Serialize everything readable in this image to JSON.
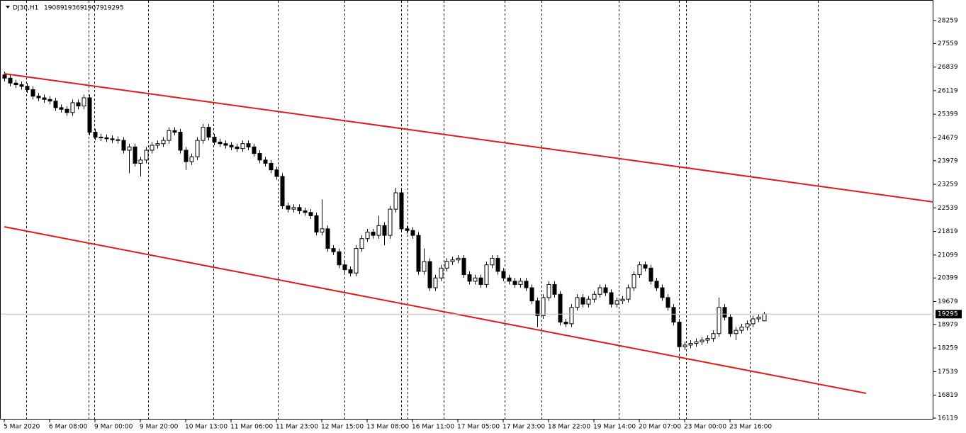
{
  "chart_data": {
    "type": "candlestick",
    "symbol": "DJ30,H1",
    "categories": [
      "5 Mar 2020",
      null,
      null,
      null,
      null,
      null,
      null,
      null,
      "6 Mar 08:00",
      null,
      null,
      null,
      null,
      null,
      null,
      null,
      "9 Mar 00:00",
      null,
      null,
      null,
      null,
      null,
      null,
      null,
      "9 Mar 20:00",
      null,
      null,
      null,
      null,
      null,
      null,
      null,
      "10 Mar 13:00",
      null,
      null,
      null,
      null,
      null,
      null,
      null,
      "11 Mar 06:00",
      null,
      null,
      null,
      null,
      null,
      null,
      null,
      "11 Mar 23:00",
      null,
      null,
      null,
      null,
      null,
      null,
      null,
      "12 Mar 15:00",
      null,
      null,
      null,
      null,
      null,
      null,
      null,
      "13 Mar 08:00",
      null,
      null,
      null,
      null,
      null,
      null,
      null,
      "16 Mar 11:00",
      null,
      null,
      null,
      null,
      null,
      null,
      null,
      "17 Mar 05:00",
      null,
      null,
      null,
      null,
      null,
      null,
      null,
      "17 Mar 23:00",
      null,
      null,
      null,
      null,
      null,
      null,
      null,
      "18 Mar 22:00",
      null,
      null,
      null,
      null,
      null,
      null,
      null,
      "19 Mar 14:00",
      null,
      null,
      null,
      null,
      null,
      null,
      null,
      "20 Mar 07:00",
      null,
      null,
      null,
      null,
      null,
      null,
      null,
      "23 Mar 00:00",
      null,
      null,
      null,
      null,
      null,
      null,
      null,
      "23 Mar 16:00",
      null,
      null,
      null,
      null,
      null,
      null
    ],
    "open": [
      26600,
      26500,
      26350,
      26300,
      26250,
      26150,
      25950,
      25900,
      25850,
      25800,
      25600,
      25550,
      25450,
      25750,
      25650,
      25900,
      24850,
      24700,
      24680,
      24650,
      24620,
      24600,
      24300,
      24400,
      23900,
      24000,
      24300,
      24450,
      24500,
      24600,
      24900,
      24850,
      24300,
      23950,
      24100,
      24600,
      25000,
      24700,
      24550,
      24500,
      24450,
      24400,
      24350,
      24500,
      24400,
      24200,
      24000,
      23900,
      23700,
      23500,
      22600,
      22500,
      22550,
      22450,
      22400,
      22300,
      21800,
      21900,
      21300,
      21200,
      20800,
      20650,
      20550,
      21300,
      21600,
      21800,
      21700,
      22000,
      21700,
      22500,
      23000,
      21900,
      21850,
      21700,
      20600,
      20900,
      20100,
      20400,
      20700,
      20900,
      20950,
      21000,
      20500,
      20300,
      20400,
      20200,
      20800,
      21000,
      20600,
      20400,
      20300,
      20200,
      20300,
      20100,
      19700,
      19250,
      19800,
      20200,
      19900,
      19050,
      19000,
      19500,
      19800,
      19600,
      19750,
      19900,
      20100,
      19950,
      19600,
      19700,
      19750,
      20100,
      20500,
      20800,
      20700,
      20300,
      20100,
      19800,
      19500,
      19050,
      18300,
      18350,
      18400,
      18450,
      18500,
      18550,
      18700,
      19500,
      19200,
      18700,
      18800,
      18900,
      19000,
      19150,
      19089
    ],
    "high": [
      26700,
      26600,
      26450,
      26400,
      26350,
      26250,
      26050,
      26000,
      25950,
      25900,
      25700,
      25650,
      25850,
      25850,
      26000,
      26000,
      24950,
      24800,
      24780,
      24750,
      24720,
      24700,
      24500,
      24500,
      24100,
      24400,
      24550,
      24600,
      24700,
      25000,
      25000,
      24950,
      24400,
      24200,
      24700,
      25100,
      25100,
      24800,
      24650,
      24600,
      24550,
      24500,
      24600,
      24600,
      24500,
      24300,
      24100,
      24000,
      23800,
      23600,
      22700,
      22650,
      22650,
      22550,
      22500,
      22400,
      22800,
      22000,
      21400,
      21300,
      20900,
      20750,
      21400,
      21700,
      21900,
      21900,
      22300,
      22100,
      22600,
      23150,
      23100,
      22000,
      21950,
      21800,
      21300,
      21000,
      20500,
      20800,
      21000,
      21050,
      21100,
      21100,
      20600,
      20500,
      20500,
      20900,
      21100,
      21100,
      20700,
      20500,
      20400,
      20400,
      20400,
      20200,
      19800,
      19900,
      20300,
      20300,
      20000,
      19150,
      19600,
      19900,
      19900,
      19850,
      20000,
      20200,
      20200,
      20050,
      19800,
      19850,
      20200,
      20600,
      20900,
      20900,
      20800,
      20400,
      20200,
      19900,
      19600,
      19150,
      18450,
      18500,
      18550,
      18600,
      18650,
      18800,
      19800,
      19600,
      19300,
      18900,
      19000,
      19100,
      19250,
      19300,
      19369
    ],
    "low": [
      26400,
      26250,
      26200,
      26150,
      26050,
      25850,
      25800,
      25750,
      25700,
      25500,
      25450,
      25350,
      25350,
      25550,
      25550,
      24750,
      24600,
      24580,
      24550,
      24520,
      24500,
      24200,
      23600,
      23800,
      23500,
      23900,
      24200,
      24350,
      24400,
      24500,
      24750,
      24200,
      23700,
      23850,
      24000,
      24500,
      24600,
      24450,
      24400,
      24350,
      24300,
      24250,
      24250,
      24300,
      24100,
      23900,
      23800,
      23600,
      23400,
      22500,
      22400,
      22400,
      22350,
      22300,
      22200,
      21700,
      21700,
      21200,
      21100,
      20700,
      20550,
      20450,
      20450,
      21200,
      21500,
      21600,
      21600,
      21400,
      21600,
      22400,
      21800,
      21750,
      21600,
      20500,
      20500,
      20000,
      20000,
      20300,
      20600,
      20800,
      20850,
      20400,
      20200,
      20200,
      20100,
      20100,
      20700,
      20500,
      20300,
      20200,
      20100,
      20100,
      20000,
      19600,
      18900,
      19150,
      19700,
      19800,
      18950,
      18900,
      18900,
      19400,
      19500,
      19500,
      19650,
      19800,
      19850,
      19500,
      19500,
      19600,
      19650,
      20000,
      20400,
      20600,
      20200,
      20000,
      19700,
      19400,
      18950,
      18200,
      18200,
      18250,
      18300,
      18350,
      18400,
      18450,
      18600,
      19100,
      18600,
      18500,
      18700,
      18800,
      18900,
      19050,
      19079
    ],
    "close": [
      26500,
      26350,
      26300,
      26250,
      26150,
      25950,
      25900,
      25850,
      25800,
      25600,
      25550,
      25450,
      25750,
      25650,
      25900,
      24850,
      24700,
      24680,
      24650,
      24620,
      24600,
      24300,
      24400,
      23900,
      24000,
      24300,
      24450,
      24500,
      24600,
      24900,
      24850,
      24300,
      23950,
      24100,
      24600,
      25000,
      24700,
      24550,
      24500,
      24450,
      24400,
      24350,
      24500,
      24400,
      24200,
      24000,
      23900,
      23700,
      23500,
      22600,
      22500,
      22550,
      22450,
      22400,
      22300,
      21800,
      21900,
      21300,
      21200,
      20800,
      20650,
      20550,
      21300,
      21600,
      21800,
      21700,
      22000,
      21700,
      22500,
      23000,
      21900,
      21850,
      21700,
      20600,
      20900,
      20100,
      20400,
      20700,
      20900,
      20950,
      21000,
      20500,
      20300,
      20400,
      20200,
      20800,
      21000,
      20600,
      20400,
      20300,
      20200,
      20300,
      20100,
      19700,
      19250,
      19800,
      20200,
      19900,
      19050,
      19000,
      19500,
      19800,
      19600,
      19750,
      19900,
      20100,
      19950,
      19600,
      19700,
      19750,
      20100,
      20500,
      20800,
      20700,
      20300,
      20100,
      19800,
      19500,
      19050,
      18300,
      18350,
      18400,
      18450,
      18500,
      18550,
      18700,
      19500,
      19200,
      18700,
      18800,
      18900,
      19000,
      19150,
      19200,
      19295
    ],
    "ylim": [
      16076,
      28887
    ],
    "yticks": [
      28259,
      27559,
      26839,
      26119,
      25399,
      24679,
      23979,
      23259,
      22539,
      21819,
      21099,
      20399,
      19679,
      18979,
      18259,
      17539,
      16819,
      16119
    ],
    "trendlines": [
      {
        "color": "#e31a1c",
        "x": [
          0,
          164
        ],
        "y": [
          26636,
          22720
        ]
      },
      {
        "color": "#e31a1c",
        "x": [
          0,
          152
        ],
        "y": [
          21962,
          16877
        ]
      }
    ]
  }
}
